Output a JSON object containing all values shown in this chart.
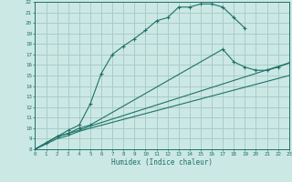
{
  "xlabel": "Humidex (Indice chaleur)",
  "bg_color": "#cce8e4",
  "grid_color": "#a8cdc9",
  "line_color": "#1d7268",
  "xlim": [
    0,
    23
  ],
  "ylim": [
    8,
    22
  ],
  "xticks": [
    0,
    1,
    2,
    3,
    4,
    5,
    6,
    7,
    8,
    9,
    10,
    11,
    12,
    13,
    14,
    15,
    16,
    17,
    18,
    19,
    20,
    21,
    22,
    23
  ],
  "yticks": [
    8,
    9,
    10,
    11,
    12,
    13,
    14,
    15,
    16,
    17,
    18,
    19,
    20,
    21,
    22
  ],
  "curve1_x": [
    0,
    1,
    2,
    3,
    4,
    5,
    6,
    7,
    8,
    9,
    10,
    11,
    12,
    13,
    14,
    15,
    16,
    17,
    18,
    19
  ],
  "curve1_y": [
    8,
    8.6,
    9.2,
    9.8,
    10.3,
    12.3,
    15.2,
    17.0,
    17.8,
    18.5,
    19.3,
    20.2,
    20.5,
    21.5,
    21.5,
    21.8,
    21.8,
    21.5,
    20.5,
    19.5
  ],
  "curve2_x": [
    0,
    2,
    3,
    4,
    5,
    17,
    18,
    19,
    20,
    21,
    22,
    23
  ],
  "curve2_y": [
    8,
    9.2,
    9.5,
    10.0,
    10.3,
    17.5,
    16.3,
    15.8,
    15.5,
    15.5,
    15.8,
    16.2
  ],
  "curve3_x": [
    0,
    2,
    3,
    4,
    5,
    23
  ],
  "curve3_y": [
    8,
    9.2,
    9.5,
    9.8,
    10.2,
    16.2
  ],
  "curve4_x": [
    0,
    2,
    3,
    4,
    5,
    23
  ],
  "curve4_y": [
    8,
    9.0,
    9.3,
    9.7,
    10.0,
    15.0
  ]
}
